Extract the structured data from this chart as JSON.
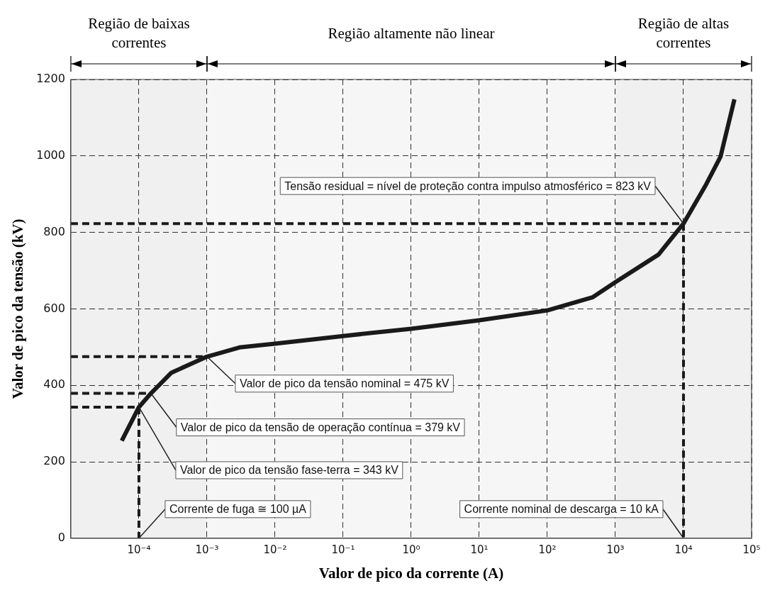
{
  "chart_data": {
    "type": "line",
    "xlabel": "Valor de pico da corrente (A)",
    "ylabel": "Valor de pico da tensão (kV)",
    "log": "x",
    "grid": true,
    "legend": false,
    "marker": "none",
    "xlim": [
      1e-05,
      100000
    ],
    "xticks": [
      {
        "value": 0.0001,
        "label": "10⁻⁴"
      },
      {
        "value": 0.001,
        "label": "10⁻³"
      },
      {
        "value": 0.01,
        "label": "10⁻²"
      },
      {
        "value": 0.1,
        "label": "10⁻¹"
      },
      {
        "value": 1,
        "label": "10⁰"
      },
      {
        "value": 10,
        "label": "10¹"
      },
      {
        "value": 100,
        "label": "10²"
      },
      {
        "value": 1000,
        "label": "10³"
      },
      {
        "value": 10000,
        "label": "10⁴"
      },
      {
        "value": 100000,
        "label": "10⁵"
      }
    ],
    "ylim": [
      0,
      1200
    ],
    "yticks": [
      0,
      200,
      400,
      600,
      800,
      1000,
      1200
    ],
    "series": [
      {
        "color": "#1a1a1a",
        "line_style": "solid",
        "x": [
          5.6e-05,
          0.0001,
          0.00015,
          0.0003,
          0.001,
          0.003,
          0.01,
          0.1,
          1,
          10,
          100,
          460,
          1000,
          4300,
          10000,
          21000,
          35000,
          56000
        ],
        "values": [
          255,
          343,
          379,
          433,
          475,
          499,
          509,
          529,
          548,
          570,
          596,
          630,
          670,
          742,
          823,
          922,
          998,
          1148
        ]
      },
      {
        "color": "#1a1a1a",
        "line_style": "dashed",
        "x": [
          1e-05,
          0.0001,
          0.0001
        ],
        "values": [
          343,
          343,
          0
        ]
      },
      {
        "color": "#1a1a1a",
        "line_style": "dashed",
        "x": [
          1e-05,
          0.00015
        ],
        "values": [
          379,
          379
        ]
      },
      {
        "color": "#1a1a1a",
        "line_style": "dashed",
        "x": [
          1e-05,
          0.001
        ],
        "values": [
          475,
          475
        ]
      },
      {
        "color": "#1a1a1a",
        "line_style": "dashed",
        "x": [
          1e-05,
          10000,
          10000
        ],
        "values": [
          823,
          823,
          0
        ]
      }
    ],
    "bands": [
      {
        "axis": "x",
        "from": 1e-05,
        "to": 0.001,
        "label": "Região de baixas correntes"
      },
      {
        "axis": "x",
        "from": 0.001,
        "to": 1000,
        "label": "Região altamente não linear"
      },
      {
        "axis": "x",
        "from": 1000,
        "to": 100000,
        "label": "Região de altas correntes"
      }
    ],
    "annotations": [
      {
        "text": "Tensão residual = nível de proteção contra impulso atmosférico = 823 kV",
        "x": 10000,
        "y": 823
      },
      {
        "text": "Valor de pico da tensão nominal = 475 kV",
        "x": 0.001,
        "y": 475
      },
      {
        "text": "Valor de pico da tensão de operação contínua = 379 kV",
        "x": 0.00015,
        "y": 379
      },
      {
        "text": "Valor de pico da tensão fase-terra = 343 kV",
        "x": 0.0001,
        "y": 343
      },
      {
        "text": "Corrente de fuga ≅ 100 µA",
        "x": 0.0001,
        "y": 0
      },
      {
        "text": "Corrente nominal de descarga = 10 kA",
        "x": 10000,
        "y": 0
      }
    ]
  }
}
